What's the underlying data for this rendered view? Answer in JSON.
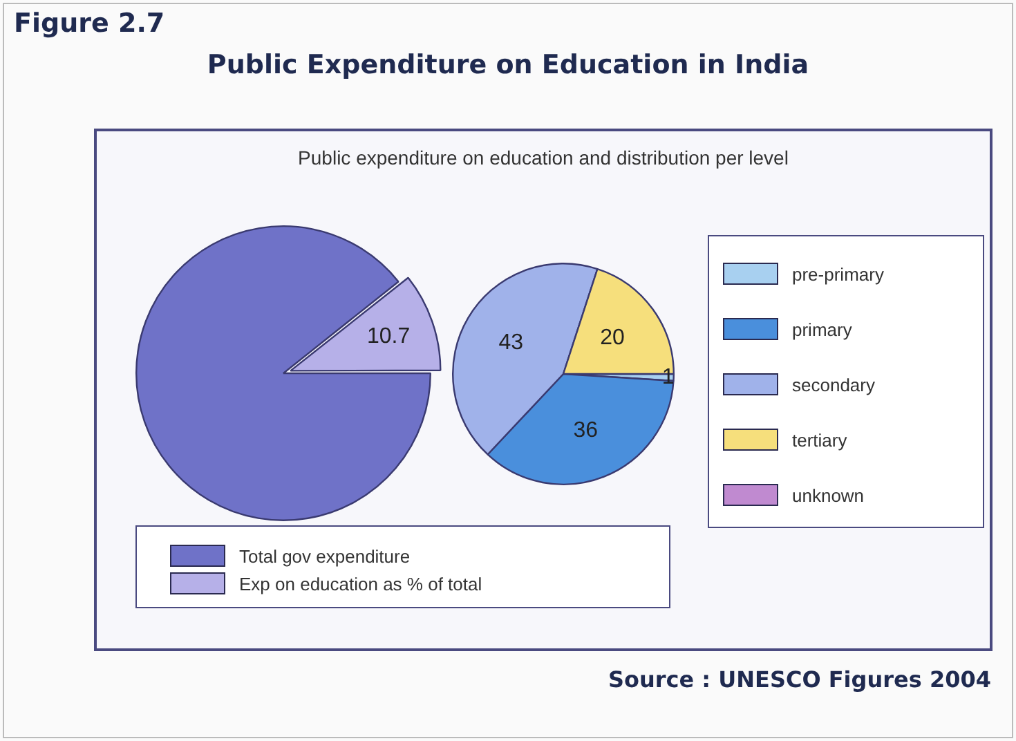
{
  "chart_data": [
    {
      "type": "pie",
      "title": "Public Expenditure on Education in India",
      "subtitle": "Public expenditure on education and distribution per level",
      "annotations": [
        "Figure 2.7",
        "Source : UNESCO Figures 2004"
      ],
      "categories": [
        "Total gov expenditure",
        "Exp on education as % of total"
      ],
      "values": [
        89.3,
        10.7
      ],
      "value_labels": [
        null,
        "10.7"
      ],
      "colors": [
        "#6f72c8",
        "#b6b0e8"
      ],
      "legend": "bottom"
    },
    {
      "type": "pie",
      "categories": [
        "pre-primary",
        "primary",
        "secondary",
        "tertiary",
        "unknown"
      ],
      "values": [
        1,
        36,
        43,
        20,
        0
      ],
      "value_labels": [
        "1",
        "36",
        "43",
        "20",
        null
      ],
      "colors": [
        "#a8d0f0",
        "#4a8fdc",
        "#a0b2ea",
        "#f6df7c",
        "#c08ad0"
      ],
      "legend": "right"
    }
  ]
}
